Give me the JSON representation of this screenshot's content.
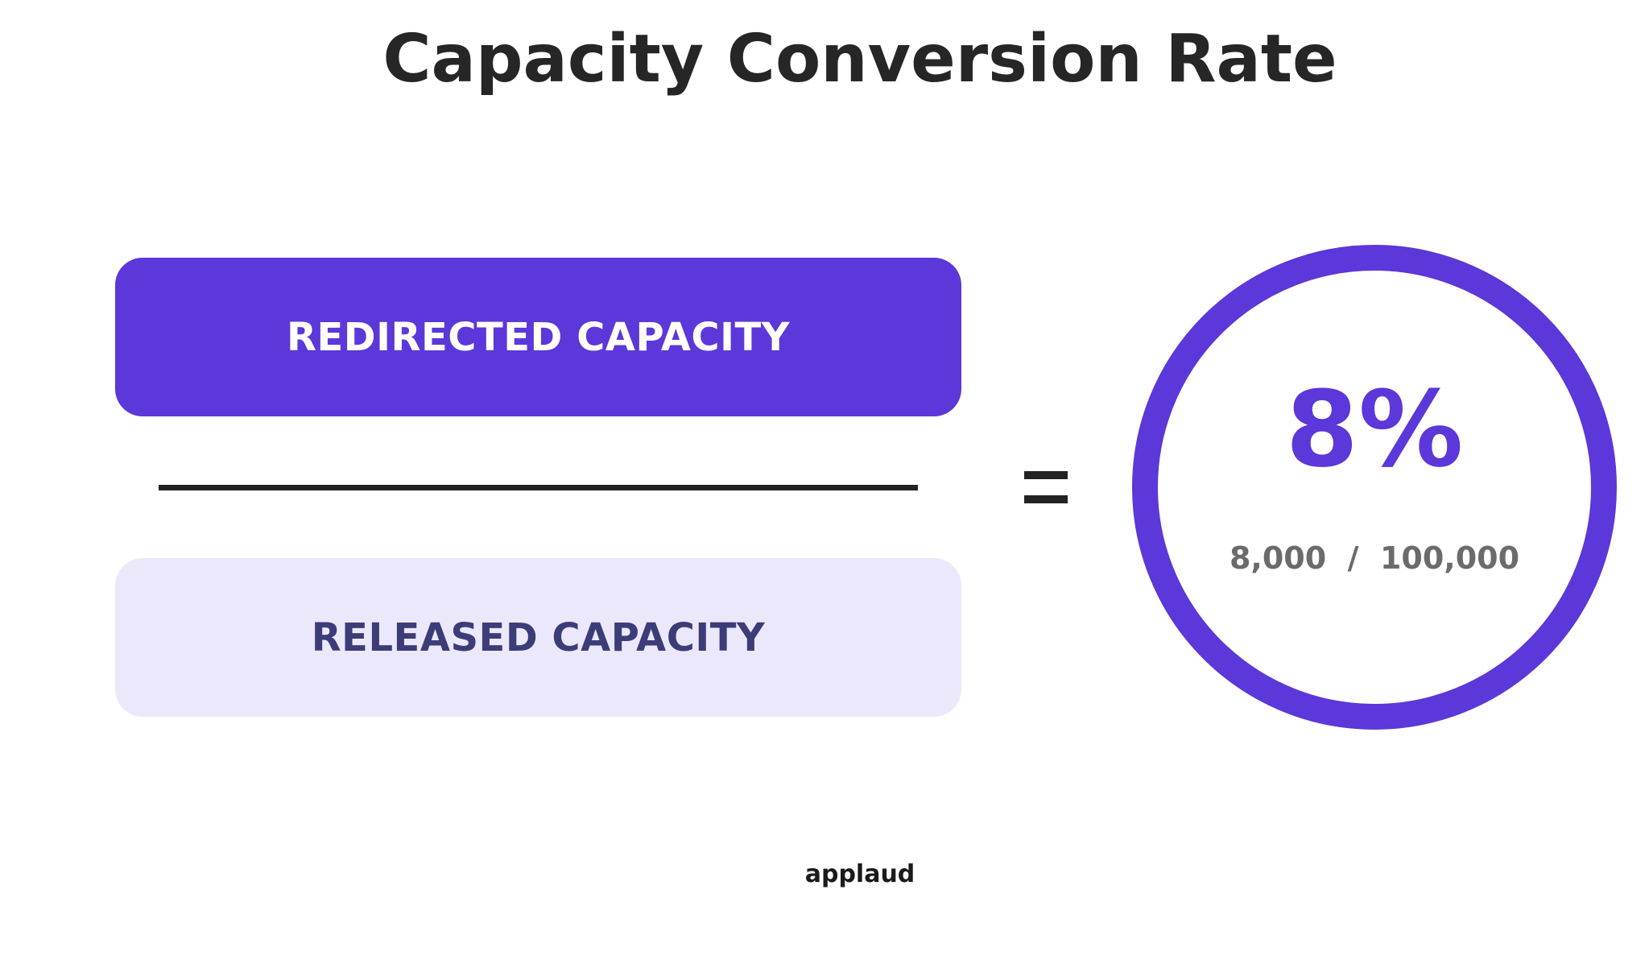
{
  "title": "Capacity Conversion Rate",
  "numerator": {
    "label": "REDIRECTED CAPACITY"
  },
  "denominator": {
    "label": "RELEASED CAPACITY"
  },
  "result": {
    "rate": "8%",
    "numerator_value": "8,000",
    "separator": "/",
    "denominator_value": "100,000"
  },
  "brand": "applaud",
  "colors": {
    "accent": "#5c37d9",
    "light_accent": "#ece8fc",
    "denominator_text": "#3b3c78",
    "dark": "#232323"
  }
}
